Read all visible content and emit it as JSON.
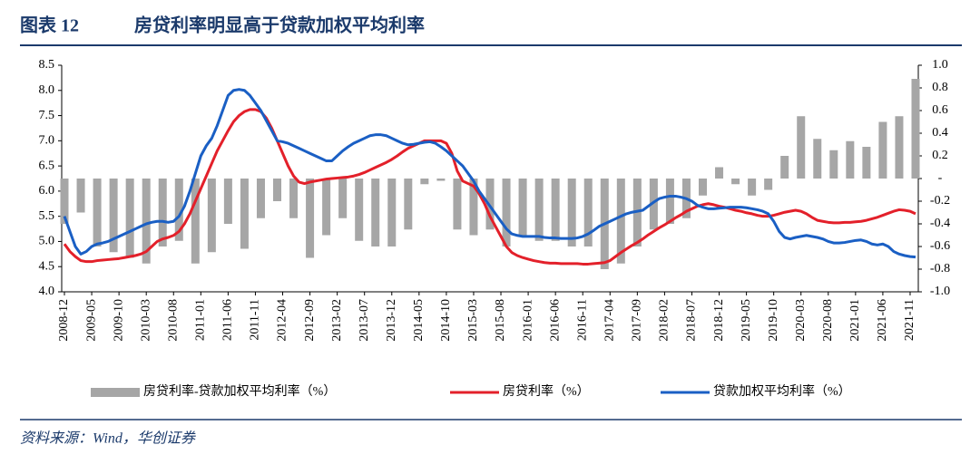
{
  "figure_label": "图表 12",
  "source": "资料来源：Wind，华创证券",
  "chart_data": {
    "type": "bar-line",
    "title": "房贷利率明显高于贷款加权平均利率",
    "categories": [
      "2008-12",
      null,
      null,
      null,
      null,
      "2009-05",
      null,
      null,
      null,
      null,
      "2009-10",
      null,
      null,
      null,
      null,
      "2010-03",
      null,
      null,
      null,
      null,
      "2010-08",
      null,
      null,
      null,
      null,
      "2011-01",
      null,
      null,
      null,
      null,
      "2011-06",
      null,
      null,
      null,
      null,
      "2011-11",
      null,
      null,
      null,
      null,
      "2012-04",
      null,
      null,
      null,
      null,
      "2012-09",
      null,
      null,
      null,
      null,
      "2013-02",
      null,
      null,
      null,
      null,
      "2013-07",
      null,
      null,
      null,
      null,
      "2013-12",
      null,
      null,
      null,
      null,
      "2014-05",
      null,
      null,
      null,
      null,
      "2014-10",
      null,
      null,
      null,
      null,
      "2015-03",
      null,
      null,
      null,
      null,
      "2015-08",
      null,
      null,
      null,
      null,
      "2016-01",
      null,
      null,
      null,
      null,
      "2016-06",
      null,
      null,
      null,
      null,
      "2016-11",
      null,
      null,
      null,
      null,
      "2017-04",
      null,
      null,
      null,
      null,
      "2017-09",
      null,
      null,
      null,
      null,
      "2018-02",
      null,
      null,
      null,
      null,
      "2018-07",
      null,
      null,
      null,
      null,
      "2018-12",
      null,
      null,
      null,
      null,
      "2019-05",
      null,
      null,
      null,
      null,
      "2019-10",
      null,
      null,
      null,
      null,
      "2020-03",
      null,
      null,
      null,
      null,
      "2020-08",
      null,
      null,
      null,
      null,
      "2021-01",
      null,
      null,
      null,
      null,
      "2021-06",
      null,
      null,
      null,
      null,
      "2021-11",
      null
    ],
    "series": [
      {
        "name": "房贷利率-贷款加权平均利率（%）",
        "type": "bar",
        "axis": "y2",
        "color": "#a6a6a6",
        "values": [
          -0.4,
          null,
          null,
          -0.3,
          null,
          null,
          -0.6,
          null,
          null,
          -0.65,
          null,
          null,
          -0.7,
          null,
          null,
          -0.75,
          null,
          null,
          -0.6,
          null,
          null,
          -0.55,
          null,
          null,
          -0.75,
          null,
          null,
          -0.65,
          null,
          null,
          -0.4,
          null,
          null,
          -0.62,
          null,
          null,
          -0.35,
          null,
          null,
          -0.2,
          null,
          null,
          -0.35,
          null,
          null,
          -0.7,
          null,
          null,
          -0.5,
          null,
          null,
          -0.35,
          null,
          null,
          -0.55,
          null,
          null,
          -0.6,
          null,
          null,
          -0.6,
          null,
          null,
          -0.45,
          null,
          null,
          -0.05,
          null,
          null,
          -0.02,
          null,
          null,
          -0.45,
          null,
          null,
          -0.5,
          null,
          null,
          -0.45,
          null,
          null,
          -0.6,
          null,
          null,
          -0.5,
          null,
          null,
          -0.55,
          null,
          null,
          -0.55,
          null,
          null,
          -0.6,
          null,
          null,
          -0.6,
          null,
          null,
          -0.8,
          null,
          null,
          -0.75,
          null,
          null,
          -0.6,
          null,
          null,
          -0.45,
          null,
          null,
          -0.4,
          null,
          null,
          -0.35,
          null,
          null,
          -0.15,
          null,
          null,
          0.1,
          null,
          null,
          -0.05,
          null,
          null,
          -0.15,
          null,
          null,
          -0.1,
          null,
          null,
          0.2,
          null,
          null,
          0.55,
          null,
          null,
          0.35,
          null,
          null,
          0.25,
          null,
          null,
          0.33,
          null,
          null,
          0.28,
          null,
          null,
          0.5,
          null,
          null,
          0.55,
          null,
          null,
          0.88
        ]
      },
      {
        "name": "房贷利率（%）",
        "type": "line",
        "color": "#e3202a",
        "values": [
          4.95,
          4.8,
          4.7,
          4.62,
          4.6,
          4.6,
          4.62,
          4.63,
          4.64,
          4.65,
          4.66,
          4.68,
          4.7,
          4.72,
          4.75,
          4.8,
          4.9,
          5.0,
          5.05,
          5.08,
          5.12,
          5.2,
          5.35,
          5.55,
          5.8,
          6.05,
          6.3,
          6.55,
          6.8,
          7.0,
          7.2,
          7.38,
          7.5,
          7.58,
          7.62,
          7.62,
          7.58,
          7.45,
          7.25,
          7.0,
          6.75,
          6.5,
          6.3,
          6.18,
          6.15,
          6.18,
          6.2,
          6.22,
          6.24,
          6.25,
          6.26,
          6.27,
          6.28,
          6.3,
          6.33,
          6.37,
          6.42,
          6.47,
          6.52,
          6.57,
          6.63,
          6.7,
          6.78,
          6.85,
          6.9,
          6.95,
          7.0,
          7.0,
          7.0,
          7.0,
          6.95,
          6.75,
          6.4,
          6.2,
          6.15,
          6.1,
          5.95,
          5.75,
          5.5,
          5.3,
          5.1,
          4.9,
          4.78,
          4.72,
          4.68,
          4.65,
          4.62,
          4.6,
          4.58,
          4.57,
          4.57,
          4.56,
          4.56,
          4.56,
          4.56,
          4.55,
          4.55,
          4.56,
          4.57,
          4.58,
          4.62,
          4.7,
          4.78,
          4.85,
          4.92,
          4.98,
          5.05,
          5.13,
          5.2,
          5.27,
          5.33,
          5.4,
          5.47,
          5.53,
          5.6,
          5.65,
          5.7,
          5.73,
          5.75,
          5.73,
          5.7,
          5.68,
          5.65,
          5.62,
          5.6,
          5.57,
          5.55,
          5.52,
          5.5,
          5.5,
          5.52,
          5.55,
          5.58,
          5.6,
          5.62,
          5.6,
          5.55,
          5.48,
          5.42,
          5.4,
          5.38,
          5.37,
          5.37,
          5.38,
          5.38,
          5.39,
          5.4,
          5.42,
          5.45,
          5.48,
          5.52,
          5.56,
          5.6,
          5.63,
          5.62,
          5.6,
          5.55
        ]
      },
      {
        "name": "贷款加权平均利率（%）",
        "type": "line",
        "color": "#1a5fc4",
        "values": [
          5.5,
          5.2,
          4.9,
          4.75,
          4.8,
          4.9,
          4.95,
          4.97,
          5.0,
          5.05,
          5.1,
          5.15,
          5.2,
          5.25,
          5.3,
          5.35,
          5.38,
          5.4,
          5.4,
          5.38,
          5.4,
          5.5,
          5.7,
          6.0,
          6.35,
          6.7,
          6.9,
          7.05,
          7.3,
          7.6,
          7.9,
          8.0,
          8.02,
          8.0,
          7.9,
          7.75,
          7.6,
          7.4,
          7.2,
          7.0,
          6.98,
          6.95,
          6.9,
          6.85,
          6.8,
          6.75,
          6.7,
          6.65,
          6.6,
          6.6,
          6.7,
          6.8,
          6.88,
          6.95,
          7.0,
          7.05,
          7.1,
          7.12,
          7.12,
          7.1,
          7.05,
          7.0,
          6.95,
          6.92,
          6.93,
          6.95,
          6.97,
          6.98,
          6.95,
          6.88,
          6.8,
          6.7,
          6.6,
          6.5,
          6.35,
          6.2,
          6.0,
          5.85,
          5.7,
          5.55,
          5.4,
          5.25,
          5.15,
          5.12,
          5.1,
          5.1,
          5.1,
          5.1,
          5.08,
          5.07,
          5.07,
          5.06,
          5.06,
          5.06,
          5.07,
          5.1,
          5.15,
          5.22,
          5.3,
          5.35,
          5.4,
          5.45,
          5.5,
          5.55,
          5.58,
          5.6,
          5.62,
          5.7,
          5.78,
          5.85,
          5.88,
          5.9,
          5.9,
          5.88,
          5.85,
          5.8,
          5.72,
          5.68,
          5.65,
          5.65,
          5.66,
          5.67,
          5.68,
          5.68,
          5.68,
          5.67,
          5.65,
          5.63,
          5.6,
          5.55,
          5.4,
          5.2,
          5.08,
          5.05,
          5.08,
          5.1,
          5.12,
          5.1,
          5.08,
          5.05,
          5.0,
          4.97,
          4.97,
          4.98,
          5.0,
          5.02,
          5.03,
          5.0,
          4.95,
          4.93,
          4.95,
          4.9,
          4.8,
          4.75,
          4.72,
          4.7,
          4.69
        ]
      }
    ],
    "ylim": [
      4.0,
      8.5
    ],
    "yticks": [
      {
        "value": 4,
        "label": "4.0"
      },
      4.5,
      {
        "value": 5,
        "label": "5.0"
      },
      5.5,
      {
        "value": 6,
        "label": "6.0"
      },
      6.5,
      {
        "value": 7,
        "label": "7.0"
      },
      7.5,
      {
        "value": 8,
        "label": "8.0"
      },
      8.5
    ],
    "y2lim": [
      -1.0,
      1.0
    ],
    "y2ticks": [
      {
        "value": -1,
        "label": "-1.0"
      },
      -0.8,
      -0.6,
      -0.4,
      -0.2,
      {
        "value": 0,
        "label": "-"
      },
      0.2,
      0.4,
      0.6,
      0.8,
      {
        "value": 1,
        "label": "1.0"
      }
    ],
    "legend": "bottom"
  }
}
